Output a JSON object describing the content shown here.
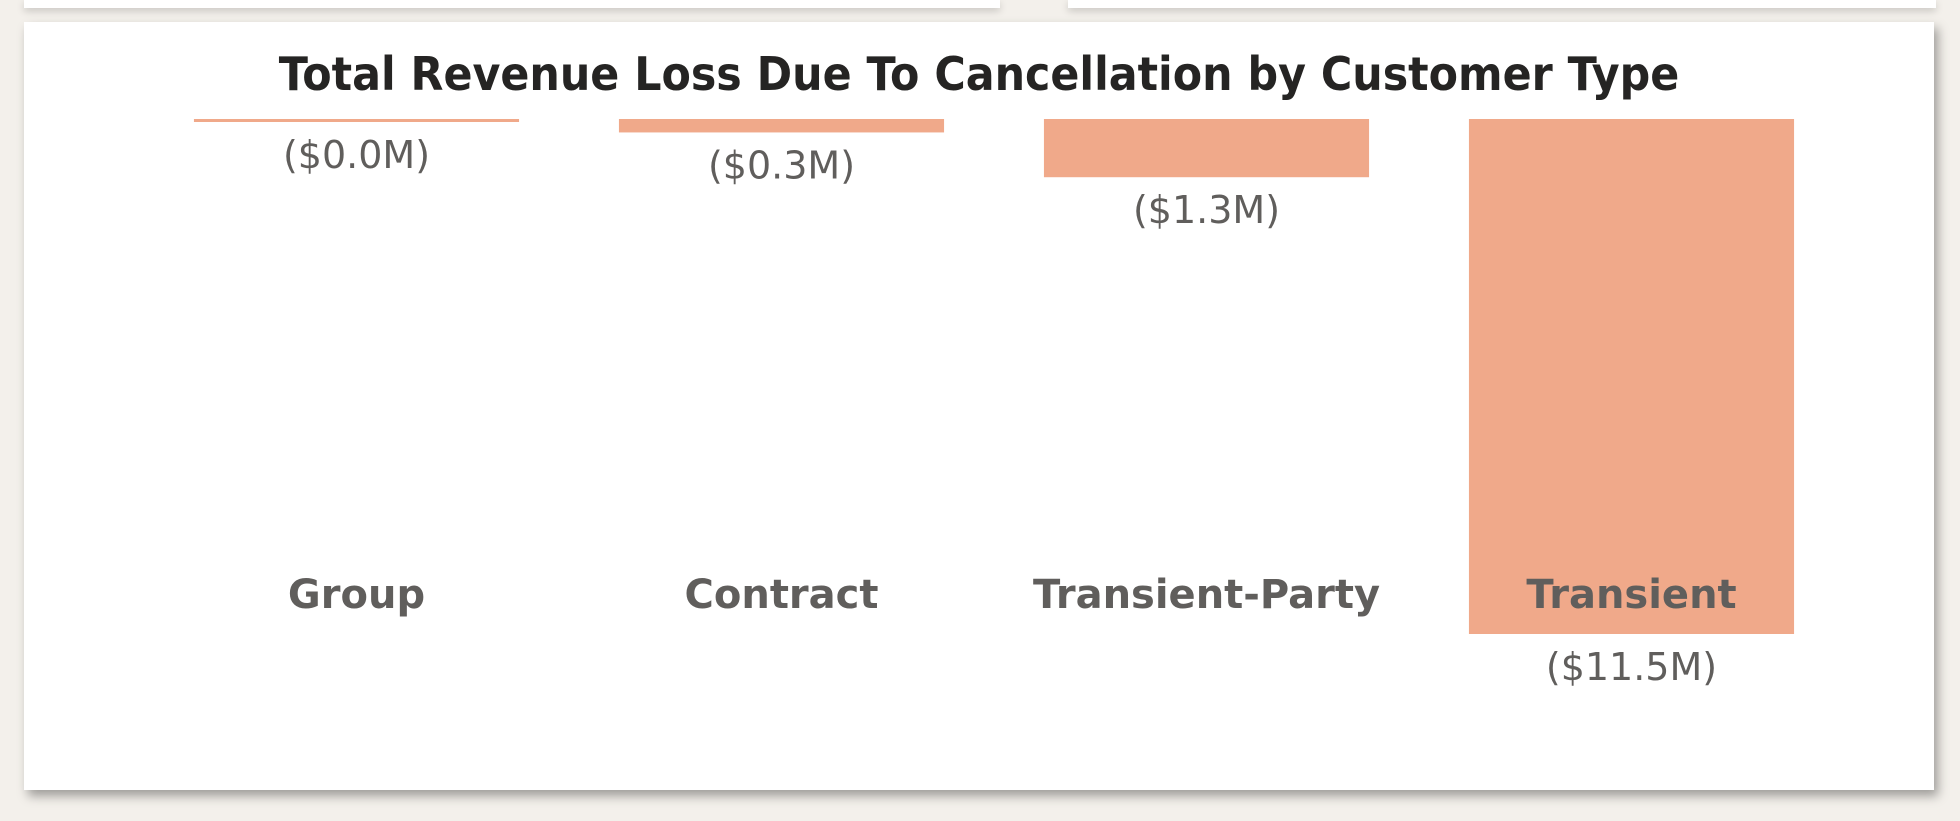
{
  "chart_data": {
    "type": "bar",
    "title": "Total Revenue Loss Due To Cancellation by Customer Type",
    "xlabel": "",
    "ylabel": "",
    "categories": [
      "Group",
      "Contract",
      "Transient-Party",
      "Transient"
    ],
    "values": [
      -0.03,
      -0.3,
      -1.3,
      -11.5
    ],
    "data_labels": [
      "($0.0M)",
      "($0.3M)",
      "($1.3M)",
      "($11.5M)"
    ],
    "ylim": [
      -11.5,
      0
    ],
    "grid": false,
    "bar_color": "#f0a98a"
  },
  "colors": {
    "background": "#f3f0eb",
    "card": "#ffffff",
    "title": "#252423",
    "label": "#605e5c"
  }
}
